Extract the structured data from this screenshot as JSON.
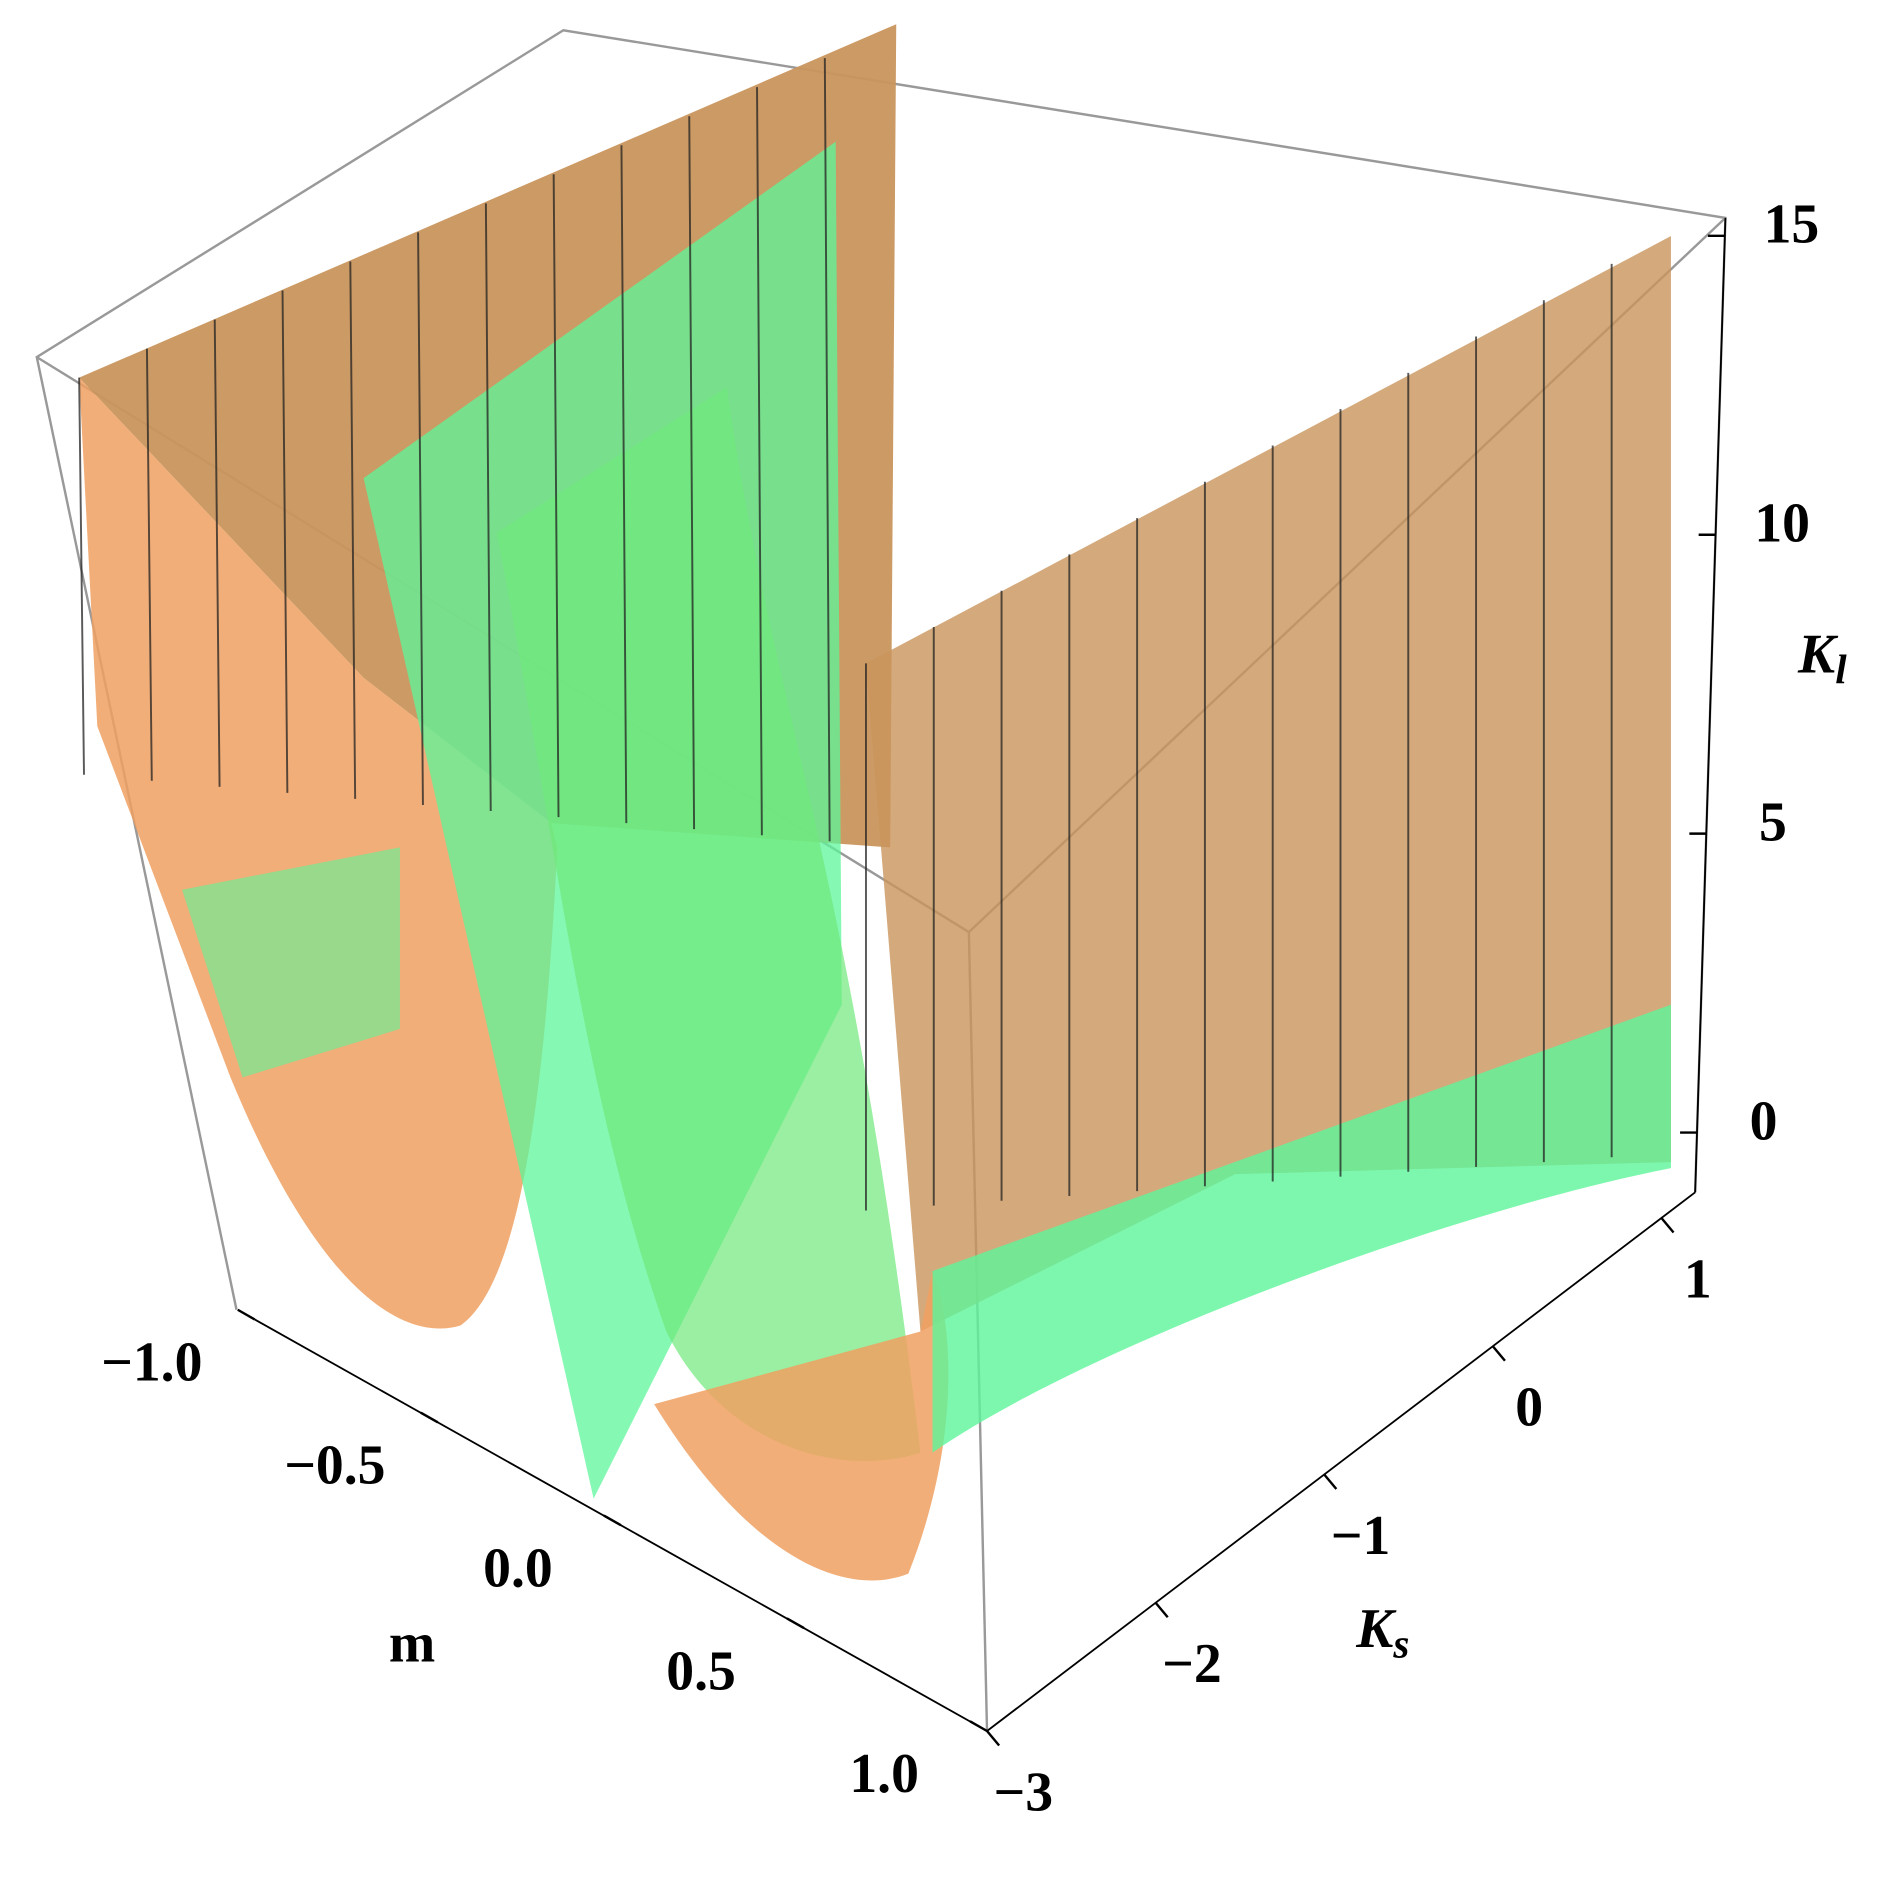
{
  "chart_data": {
    "type": "surface3d",
    "xlabel": "m",
    "ylabel": {
      "text": "K",
      "sub": "s"
    },
    "zlabel": {
      "text": "K",
      "sub": "l"
    },
    "xlim": [
      -1,
      1
    ],
    "ylim": [
      -3,
      1.2
    ],
    "zlim": [
      -1,
      15.3
    ],
    "xticks": [
      {
        "value": -1,
        "label": "−1.0"
      },
      {
        "value": -0.5,
        "label": "−0.5"
      },
      {
        "value": 0,
        "label": "0.0"
      },
      0.5,
      {
        "value": 1,
        "label": "1.0"
      }
    ],
    "yticks": [
      {
        "value": -3,
        "label": "−3"
      },
      {
        "value": -2,
        "label": "−2"
      },
      {
        "value": -1,
        "label": "−1"
      },
      0,
      1
    ],
    "zticks": [
      0,
      5,
      10,
      15
    ],
    "colors": [
      "#d9a56e",
      "#5cf59a"
    ]
  }
}
